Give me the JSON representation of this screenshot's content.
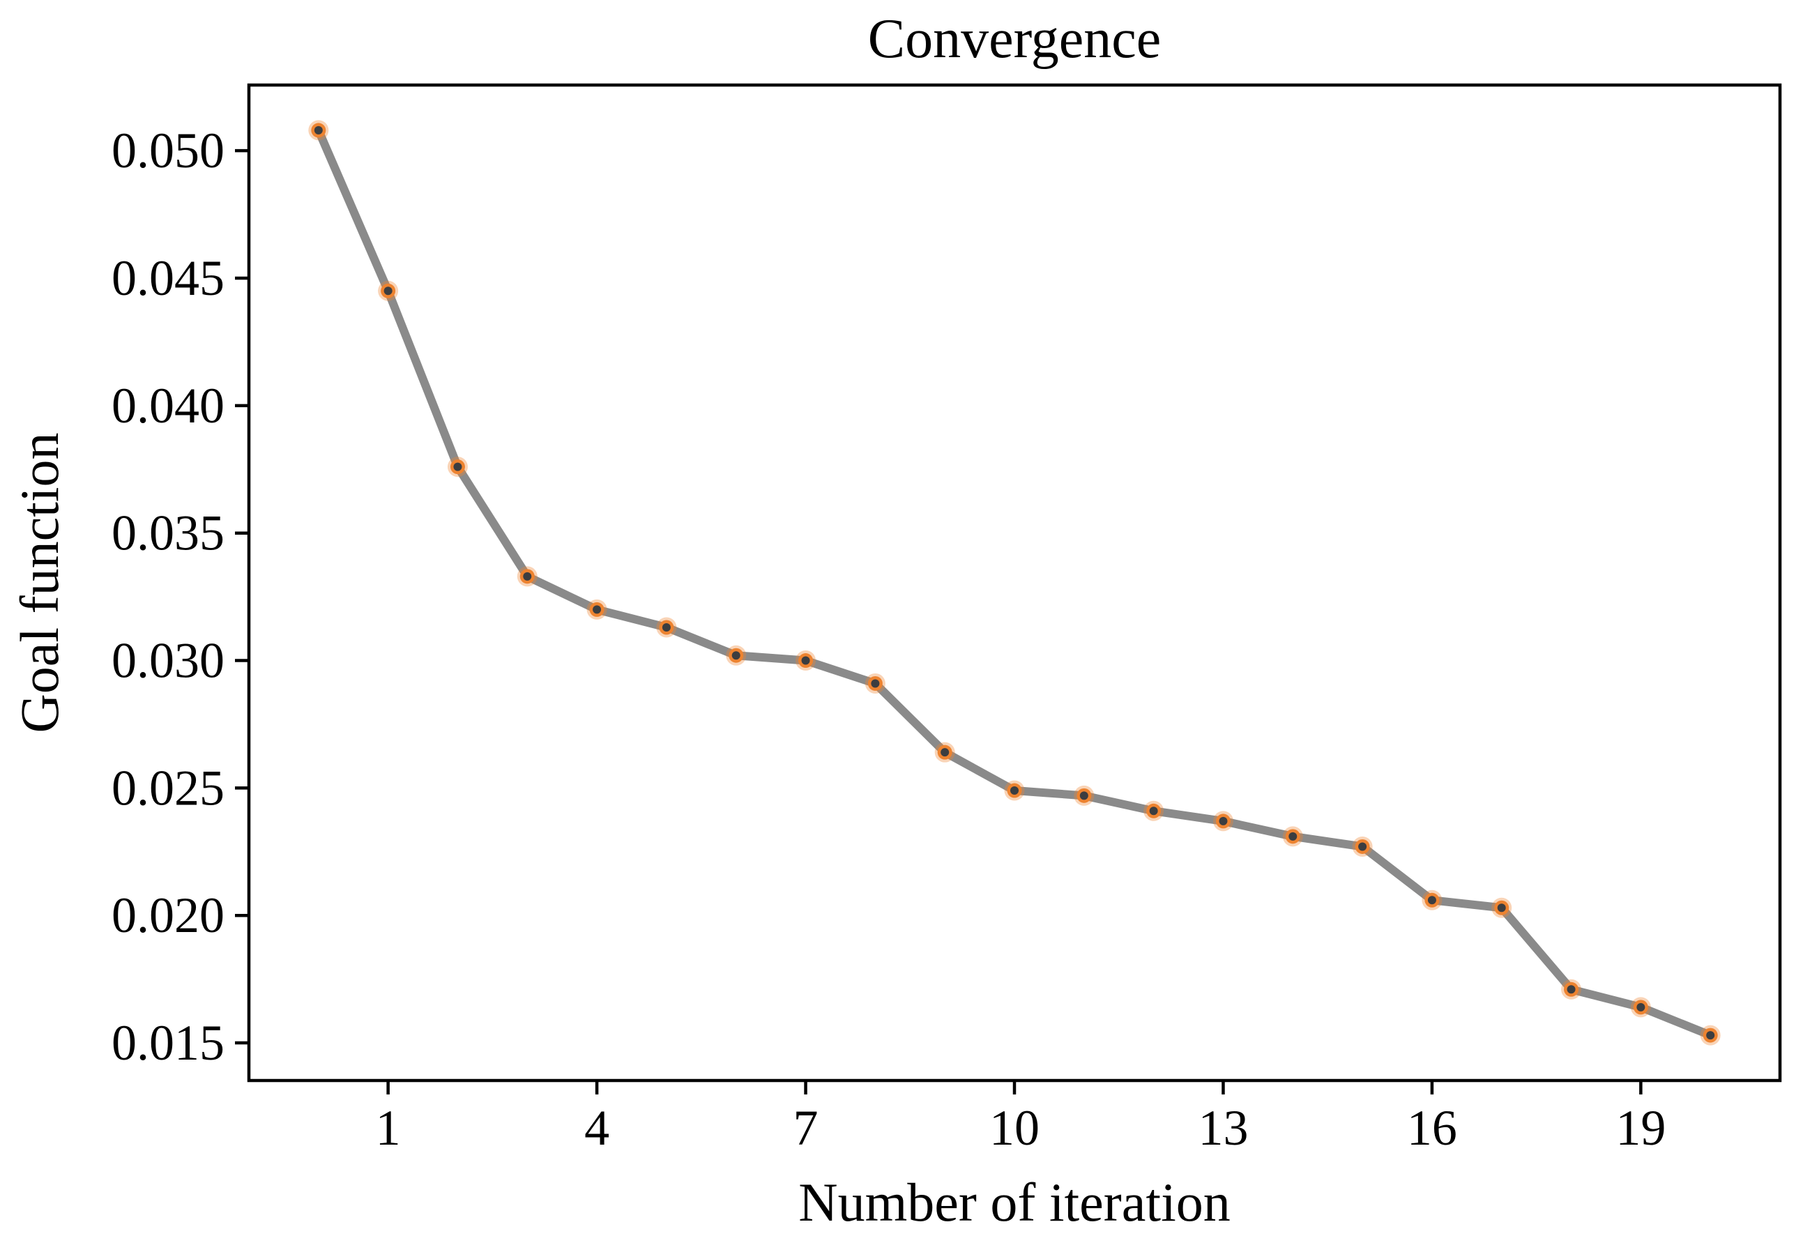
{
  "figure": {
    "background": "#FFFFFF"
  },
  "chart_data": {
    "type": "line",
    "title": "Convergence",
    "xlabel": "Number of iteration",
    "ylabel": "Goal function",
    "x": [
      0,
      1,
      2,
      3,
      4,
      5,
      6,
      7,
      8,
      9,
      10,
      11,
      12,
      13,
      14,
      15,
      16,
      17,
      18,
      19,
      20
    ],
    "y": [
      0.0508,
      0.0445,
      0.0376,
      0.0333,
      0.032,
      0.0313,
      0.0302,
      0.03,
      0.0291,
      0.0264,
      0.0249,
      0.0247,
      0.0241,
      0.0237,
      0.0231,
      0.0227,
      0.0206,
      0.0203,
      0.0171,
      0.0164,
      0.0153
    ],
    "xticks": [
      1,
      4,
      7,
      10,
      13,
      16,
      19
    ],
    "xticklabels": [
      "1",
      "4",
      "7",
      "10",
      "13",
      "16",
      "19"
    ],
    "yticks": [
      0.015,
      0.02,
      0.025,
      0.03,
      0.035,
      0.04,
      0.045,
      0.05
    ],
    "yticklabels": [
      "0.015",
      "0.020",
      "0.025",
      "0.030",
      "0.035",
      "0.040",
      "0.045",
      "0.050"
    ],
    "xlim": [
      -1,
      21
    ],
    "ylim": [
      0.013525,
      0.052575
    ],
    "grid": false,
    "legend_position": "none",
    "colors": {
      "line": "#8A8A8A",
      "marker_edge": "#ED8330",
      "marker_halo": "#ED8330",
      "marker_face": "#3B3D40",
      "axis": "#000000",
      "text": "#000000"
    }
  }
}
